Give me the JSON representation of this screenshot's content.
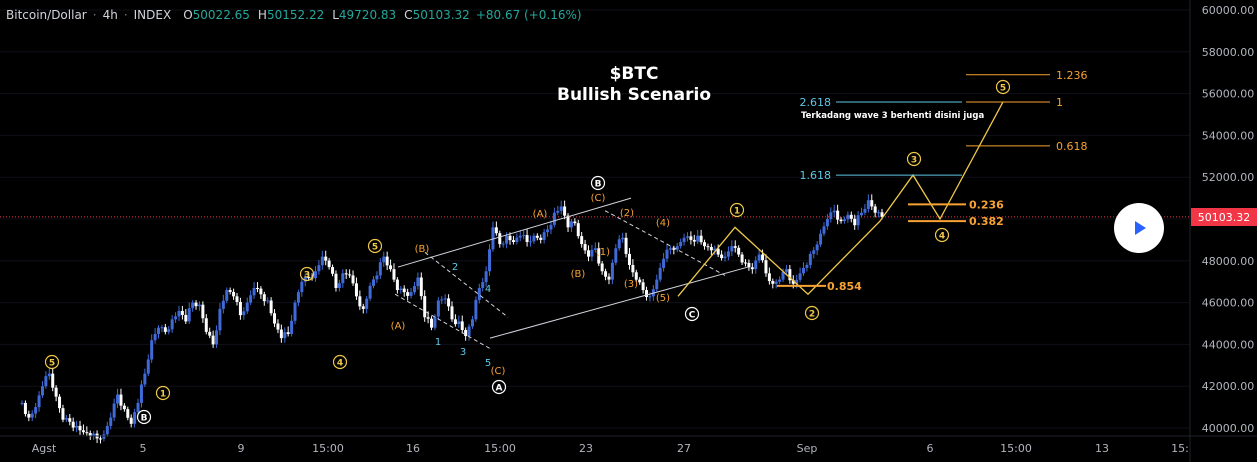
{
  "header": {
    "symbol": "Bitcoin/Dollar",
    "sep": "·",
    "interval": "4h",
    "source": "INDEX",
    "o_label": "O",
    "o_value": "50022.65",
    "h_label": "H",
    "h_value": "50152.22",
    "l_label": "L",
    "l_value": "49720.83",
    "c_label": "C",
    "c_value": "50103.32",
    "change": "+80.67 (+0.16%)"
  },
  "overlay": {
    "title_line1": "$BTC",
    "title_line2": "Bullish Scenario",
    "note": "Terkadang wave 3 berhenti disini juga",
    "current_price": "50103.32",
    "play_icon": "play-icon"
  },
  "colors": {
    "background": "#000000",
    "up_candle": "#3f6ad8",
    "down_candle": "#ffffff",
    "wave_orange": "#f7a233",
    "wave_yellow": "#f0c94a",
    "fib_cyan": "#5ec8e6",
    "price_line": "#f23645",
    "axis_text": "#b2b5be"
  },
  "chart_data": {
    "type": "candlestick",
    "y_axis": {
      "min": 40000,
      "max": 60000,
      "step": 2000,
      "ticks": [
        "40000.00",
        "42000.00",
        "44000.00",
        "46000.00",
        "48000.00",
        "50000.00",
        "52000.00",
        "54000.00",
        "56000.00",
        "58000.00",
        "60000.00"
      ]
    },
    "x_axis": {
      "ticks": [
        "Agst",
        "5",
        "9",
        "15:00",
        "16",
        "15:00",
        "23",
        "27",
        "Sep",
        "6",
        "15:00",
        "13",
        "15:"
      ]
    },
    "close_path": [
      [
        0,
        41200
      ],
      [
        1,
        40500
      ],
      [
        2,
        41000
      ],
      [
        3,
        42000
      ],
      [
        4,
        42600
      ],
      [
        5,
        41500
      ],
      [
        6,
        40400
      ],
      [
        7,
        40300
      ],
      [
        8,
        40100
      ],
      [
        9,
        39800
      ],
      [
        10,
        39600
      ],
      [
        11,
        39500
      ],
      [
        12,
        39700
      ],
      [
        13,
        40500
      ],
      [
        14,
        41600
      ],
      [
        15,
        40900
      ],
      [
        16,
        40200
      ],
      [
        17,
        41200
      ],
      [
        18,
        42600
      ],
      [
        19,
        44200
      ],
      [
        20,
        44800
      ],
      [
        21,
        44600
      ],
      [
        22,
        45200
      ],
      [
        23,
        45600
      ],
      [
        24,
        45100
      ],
      [
        25,
        46000
      ],
      [
        26,
        45900
      ],
      [
        27,
        44600
      ],
      [
        28,
        44000
      ],
      [
        29,
        45700
      ],
      [
        30,
        46600
      ],
      [
        31,
        46300
      ],
      [
        32,
        45400
      ],
      [
        33,
        46000
      ],
      [
        34,
        46700
      ],
      [
        35,
        46400
      ],
      [
        36,
        46100
      ],
      [
        37,
        45000
      ],
      [
        38,
        44300
      ],
      [
        39,
        44500
      ],
      [
        40,
        46000
      ],
      [
        41,
        47000
      ],
      [
        42,
        47200
      ],
      [
        43,
        47500
      ],
      [
        44,
        48200
      ],
      [
        45,
        47700
      ],
      [
        46,
        46700
      ],
      [
        47,
        47400
      ],
      [
        48,
        47300
      ],
      [
        49,
        46300
      ],
      [
        50,
        45700
      ],
      [
        51,
        46800
      ],
      [
        52,
        47300
      ],
      [
        53,
        48200
      ],
      [
        54,
        47600
      ],
      [
        55,
        46600
      ],
      [
        56,
        46500
      ],
      [
        57,
        46500
      ],
      [
        58,
        47200
      ],
      [
        59,
        45300
      ],
      [
        60,
        44800
      ],
      [
        61,
        46100
      ],
      [
        62,
        46200
      ],
      [
        63,
        45200
      ],
      [
        64,
        45100
      ],
      [
        65,
        44400
      ],
      [
        66,
        45200
      ],
      [
        67,
        46700
      ],
      [
        68,
        47500
      ],
      [
        69,
        49600
      ],
      [
        70,
        48800
      ],
      [
        71,
        49200
      ],
      [
        72,
        48900
      ],
      [
        73,
        49200
      ],
      [
        74,
        48900
      ],
      [
        75,
        49200
      ],
      [
        76,
        49000
      ],
      [
        77,
        49500
      ],
      [
        78,
        50300
      ],
      [
        79,
        50600
      ],
      [
        80,
        49600
      ],
      [
        81,
        49800
      ],
      [
        82,
        48800
      ],
      [
        83,
        48200
      ],
      [
        84,
        48600
      ],
      [
        85,
        47500
      ],
      [
        86,
        47100
      ],
      [
        87,
        48600
      ],
      [
        88,
        49100
      ],
      [
        89,
        47800
      ],
      [
        90,
        47100
      ],
      [
        91,
        46600
      ],
      [
        92,
        46300
      ],
      [
        93,
        47100
      ],
      [
        94,
        48100
      ],
      [
        95,
        48600
      ],
      [
        96,
        48700
      ],
      [
        97,
        49100
      ],
      [
        98,
        49000
      ],
      [
        99,
        49200
      ],
      [
        100,
        48700
      ],
      [
        101,
        48500
      ],
      [
        102,
        48300
      ],
      [
        103,
        48200
      ],
      [
        104,
        48700
      ],
      [
        105,
        48300
      ],
      [
        106,
        47900
      ],
      [
        107,
        47600
      ],
      [
        108,
        48300
      ],
      [
        109,
        47400
      ],
      [
        110,
        46900
      ],
      [
        111,
        47100
      ],
      [
        112,
        47600
      ],
      [
        113,
        46900
      ],
      [
        114,
        47400
      ],
      [
        115,
        47800
      ],
      [
        116,
        48500
      ],
      [
        117,
        49300
      ],
      [
        118,
        50000
      ],
      [
        119,
        50400
      ],
      [
        120,
        49900
      ],
      [
        121,
        50200
      ],
      [
        122,
        49700
      ],
      [
        123,
        50300
      ],
      [
        124,
        50900
      ],
      [
        125,
        50300
      ],
      [
        126,
        50103
      ]
    ],
    "wave_labels_orange": [
      "(A)",
      "(B)",
      "(C)",
      "(A)",
      "(B)",
      "(C)",
      "(1)",
      "(2)",
      "(3)",
      "(4)",
      "(5)"
    ],
    "wave_labels_cyan": [
      "1",
      "2",
      "3",
      "4",
      "5"
    ],
    "wave_labels_circled": [
      "5",
      "1",
      "B",
      "3",
      "4",
      "5",
      "A",
      "B",
      "C",
      "1",
      "2",
      "3",
      "4",
      "5"
    ],
    "fib_levels": [
      {
        "label": "0.854",
        "value": 46800
      },
      {
        "label": "0.382",
        "value": 49900
      },
      {
        "label": "0.236",
        "value": 50700
      },
      {
        "label": "1.618",
        "value": 52100
      },
      {
        "label": "0.618",
        "value": 53500
      },
      {
        "label": "1",
        "value": 55600
      },
      {
        "label": "2.618",
        "value": 55600
      },
      {
        "label": "1.236",
        "value": 56900
      }
    ]
  }
}
